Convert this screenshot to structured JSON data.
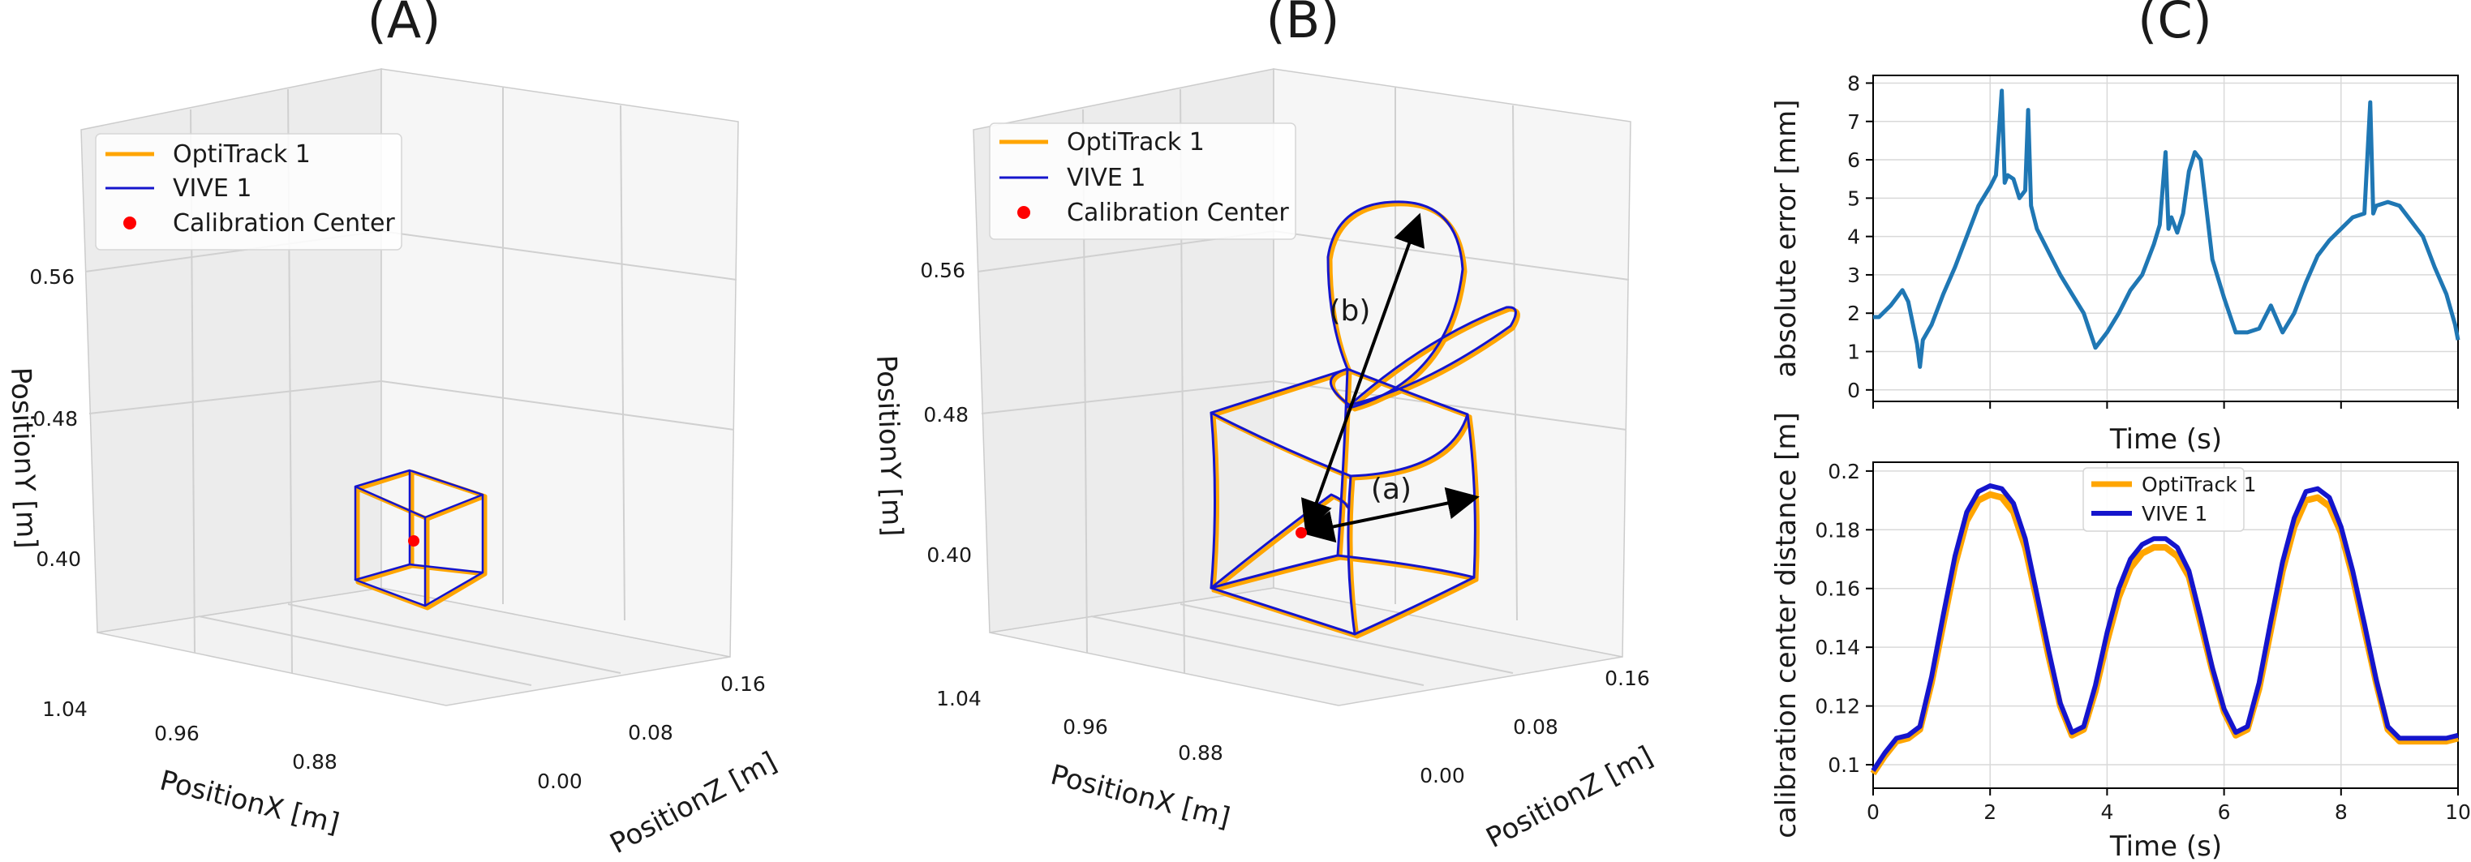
{
  "panels": {
    "a_title": "(A)",
    "b_title": "(B)",
    "c_title": "(C)"
  },
  "colors": {
    "optitrack": "#FFA500",
    "vive": "#1515CC",
    "calib": "#FF0000",
    "error_line": "#1F77B4"
  },
  "annotations": {
    "a": "(a)",
    "b": "(b)"
  },
  "chart_data": [
    {
      "type": "line",
      "panel": "(A)",
      "projection": "3d",
      "xlabel": "PositionX [m]",
      "ylabel": "PositionZ [m]",
      "zlabel": "PositionY [m]",
      "x_ticks": [
        "1.04",
        "0.96",
        "0.88"
      ],
      "y_ticks": [
        "0.00",
        "0.08",
        "0.16"
      ],
      "z_ticks": [
        "0.40",
        "0.48",
        "0.56"
      ],
      "legend": [
        "OptiTrack 1",
        "VIVE 1",
        "Calibration Center"
      ],
      "legend_placement": "top-left",
      "series": [
        {
          "name": "OptiTrack 1",
          "shape": "small cube trajectory"
        },
        {
          "name": "VIVE 1",
          "shape": "small cube trajectory"
        },
        {
          "name": "Calibration Center",
          "marker": "point"
        }
      ]
    },
    {
      "type": "line",
      "panel": "(B)",
      "projection": "3d",
      "xlabel": "PositionX [m]",
      "ylabel": "PositionZ [m]",
      "zlabel": "PositionY [m]",
      "x_ticks": [
        "1.04",
        "0.96",
        "0.88"
      ],
      "y_ticks": [
        "0.00",
        "0.08",
        "0.16"
      ],
      "z_ticks": [
        "0.40",
        "0.48",
        "0.56"
      ],
      "legend": [
        "OptiTrack 1",
        "VIVE 1",
        "Calibration Center"
      ],
      "legend_placement": "top-left",
      "annotations": [
        "(a)",
        "(b)"
      ],
      "series": [
        {
          "name": "OptiTrack 1",
          "shape": "large cube with loops"
        },
        {
          "name": "VIVE 1",
          "shape": "large cube with loops"
        },
        {
          "name": "Calibration Center",
          "marker": "point"
        }
      ]
    },
    {
      "type": "line",
      "panel": "(C) top",
      "xlabel": "Time (s)",
      "ylabel": "absolute error [mm]",
      "xlim": [
        0,
        10
      ],
      "ylim": [
        -0.3,
        8.2
      ],
      "y_ticks": [
        0,
        1,
        2,
        3,
        4,
        5,
        6,
        7,
        8
      ],
      "grid": true,
      "series": [
        {
          "x": [
            0,
            0.1,
            0.3,
            0.5,
            0.6,
            0.75,
            0.8,
            0.85,
            1.0,
            1.2,
            1.4,
            1.6,
            1.8,
            2.0,
            2.1,
            2.2,
            2.25,
            2.3,
            2.4,
            2.5,
            2.6,
            2.65,
            2.7,
            2.8,
            3.0,
            3.2,
            3.4,
            3.6,
            3.8,
            4.0,
            4.2,
            4.4,
            4.6,
            4.8,
            4.9,
            5.0,
            5.05,
            5.1,
            5.2,
            5.3,
            5.4,
            5.5,
            5.6,
            5.8,
            6.0,
            6.2,
            6.4,
            6.6,
            6.8,
            7.0,
            7.2,
            7.4,
            7.6,
            7.8,
            8.0,
            8.2,
            8.4,
            8.5,
            8.55,
            8.6,
            8.8,
            9.0,
            9.2,
            9.4,
            9.6,
            9.8,
            9.95,
            10.0
          ],
          "values": [
            1.9,
            1.9,
            2.2,
            2.6,
            2.3,
            1.2,
            0.6,
            1.3,
            1.7,
            2.5,
            3.2,
            4.0,
            4.8,
            5.3,
            5.6,
            7.8,
            5.4,
            5.6,
            5.5,
            5.0,
            5.2,
            7.3,
            4.8,
            4.2,
            3.6,
            3.0,
            2.5,
            2.0,
            1.1,
            1.5,
            2.0,
            2.6,
            3.0,
            3.8,
            4.3,
            6.2,
            4.2,
            4.5,
            4.1,
            4.6,
            5.7,
            6.2,
            6.0,
            3.4,
            2.4,
            1.5,
            1.5,
            1.6,
            2.2,
            1.5,
            2.0,
            2.8,
            3.5,
            3.9,
            4.2,
            4.5,
            4.6,
            7.5,
            4.6,
            4.8,
            4.9,
            4.8,
            4.4,
            4.0,
            3.2,
            2.5,
            1.7,
            1.3
          ]
        }
      ]
    },
    {
      "type": "line",
      "panel": "(C) bottom",
      "xlabel": "Time (s)",
      "ylabel": "calibration center distance [m]",
      "xlim": [
        0,
        10
      ],
      "ylim": [
        0.092,
        0.203
      ],
      "x_ticks": [
        0,
        2,
        4,
        6,
        8,
        10
      ],
      "y_ticks": [
        0.1,
        0.12,
        0.14,
        0.16,
        0.18,
        0.2
      ],
      "grid": true,
      "legend_placement": "top-center",
      "x": [
        0,
        0.2,
        0.4,
        0.6,
        0.8,
        1.0,
        1.2,
        1.4,
        1.6,
        1.8,
        2.0,
        2.2,
        2.4,
        2.6,
        2.8,
        3.0,
        3.2,
        3.4,
        3.6,
        3.8,
        4.0,
        4.2,
        4.4,
        4.6,
        4.8,
        5.0,
        5.2,
        5.4,
        5.6,
        5.8,
        6.0,
        6.2,
        6.4,
        6.6,
        6.8,
        7.0,
        7.2,
        7.4,
        7.6,
        7.8,
        8.0,
        8.2,
        8.4,
        8.6,
        8.8,
        9.0,
        9.2,
        9.4,
        9.6,
        9.8,
        10.0
      ],
      "series": [
        {
          "name": "OptiTrack 1",
          "values": [
            0.097,
            0.103,
            0.108,
            0.109,
            0.112,
            0.128,
            0.148,
            0.168,
            0.183,
            0.19,
            0.192,
            0.191,
            0.186,
            0.174,
            0.156,
            0.137,
            0.12,
            0.11,
            0.112,
            0.125,
            0.142,
            0.157,
            0.167,
            0.172,
            0.174,
            0.174,
            0.171,
            0.164,
            0.148,
            0.132,
            0.118,
            0.11,
            0.112,
            0.126,
            0.146,
            0.166,
            0.181,
            0.19,
            0.191,
            0.188,
            0.179,
            0.164,
            0.146,
            0.128,
            0.112,
            0.108,
            0.108,
            0.108,
            0.108,
            0.108,
            0.109
          ]
        },
        {
          "name": "VIVE 1",
          "values": [
            0.098,
            0.104,
            0.109,
            0.11,
            0.113,
            0.13,
            0.151,
            0.171,
            0.186,
            0.193,
            0.195,
            0.194,
            0.189,
            0.177,
            0.158,
            0.139,
            0.121,
            0.111,
            0.113,
            0.127,
            0.145,
            0.16,
            0.17,
            0.175,
            0.177,
            0.177,
            0.174,
            0.166,
            0.15,
            0.133,
            0.119,
            0.111,
            0.113,
            0.128,
            0.149,
            0.169,
            0.184,
            0.193,
            0.194,
            0.191,
            0.181,
            0.166,
            0.148,
            0.129,
            0.113,
            0.109,
            0.109,
            0.109,
            0.109,
            0.109,
            0.11
          ]
        }
      ]
    }
  ]
}
